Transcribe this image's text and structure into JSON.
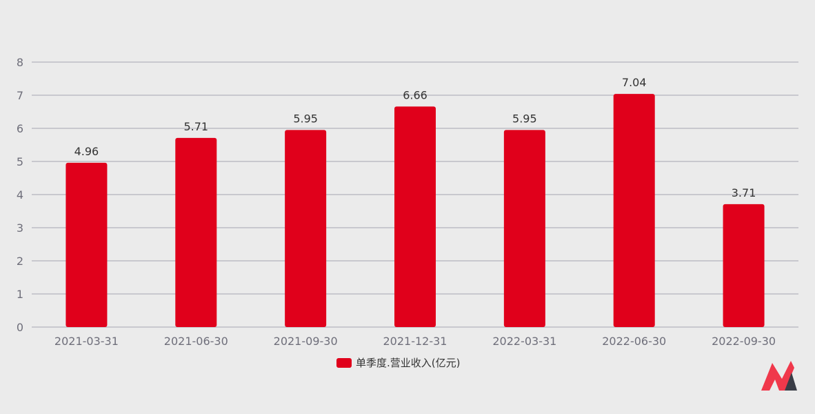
{
  "chart_data": {
    "type": "bar",
    "categories": [
      "2021-03-31",
      "2021-06-30",
      "2021-09-30",
      "2021-12-31",
      "2022-03-31",
      "2022-06-30",
      "2022-09-30"
    ],
    "series": [
      {
        "name": "单季度.营业收入(亿元)",
        "values": [
          4.96,
          5.71,
          5.95,
          6.66,
          5.95,
          7.04,
          3.71
        ]
      }
    ],
    "data_labels": [
      "4.96",
      "5.71",
      "5.95",
      "6.66",
      "5.95",
      "7.04",
      "3.71"
    ],
    "yticks": [
      "0",
      "1",
      "2",
      "3",
      "4",
      "5",
      "6",
      "7",
      "8"
    ],
    "ylim": [
      0,
      8
    ],
    "grid": true,
    "legend_position": "bottom-center",
    "colors": {
      "bar": "#e0001b",
      "grid": "#b4b4bc",
      "background": "#ebebeb",
      "logo_red": "#f0384b",
      "logo_dark": "#3a3d47"
    }
  },
  "logo": {
    "icon": "brand-logo-icon"
  }
}
